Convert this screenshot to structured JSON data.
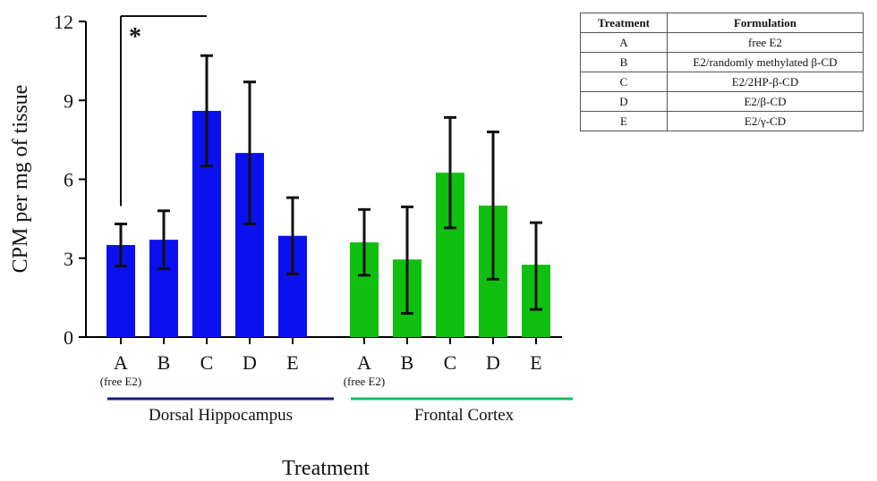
{
  "chart_data": {
    "type": "bar",
    "ylabel": "CPM per mg of tissue",
    "xlabel": "Treatment",
    "ylim": [
      0,
      12
    ],
    "yticks": [
      "0",
      "3",
      "6",
      "9",
      "12"
    ],
    "categories": [
      "A",
      "B",
      "C",
      "D",
      "E"
    ],
    "category_sublabels": [
      "(free E2)",
      "",
      "",
      "",
      ""
    ],
    "groups": [
      {
        "name": "Dorsal Hippocampus",
        "color": "#0b10ee",
        "underline_color": "#1a1a8c",
        "values": [
          3.5,
          3.7,
          8.6,
          7.0,
          3.85
        ],
        "error_low": [
          2.7,
          2.6,
          6.5,
          4.3,
          2.4
        ],
        "error_high": [
          4.3,
          4.8,
          10.7,
          9.7,
          5.3
        ]
      },
      {
        "name": "Frontal Cortex",
        "color": "#10c010",
        "underline_color": "#10c060",
        "values": [
          3.6,
          2.95,
          6.25,
          5.0,
          2.75
        ],
        "error_low": [
          2.35,
          0.9,
          4.15,
          2.2,
          1.05
        ],
        "error_high": [
          4.85,
          4.95,
          8.35,
          7.8,
          4.35
        ]
      }
    ],
    "significance": {
      "label": "*",
      "from_category": "A",
      "to_category": "C",
      "group": "Dorsal Hippocampus"
    },
    "grid": false
  },
  "table": {
    "headers": [
      "Treatment",
      "Formulation"
    ],
    "rows": [
      [
        "A",
        "free E2"
      ],
      [
        "B",
        "E2/randomly methylated β-CD"
      ],
      [
        "C",
        "E2/2HP-β-CD"
      ],
      [
        "D",
        "E2/β-CD"
      ],
      [
        "E",
        "E2/γ-CD"
      ]
    ]
  }
}
